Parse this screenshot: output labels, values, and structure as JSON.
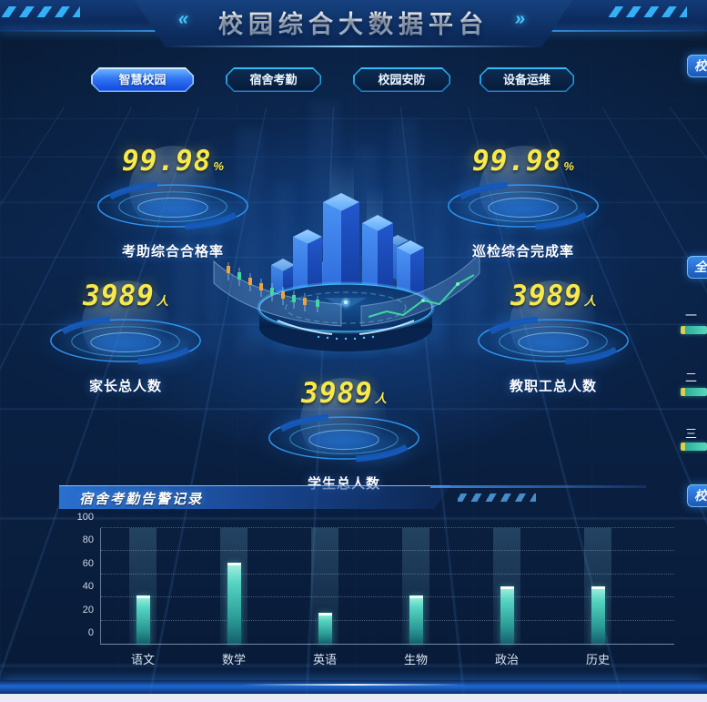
{
  "header": {
    "title": "校园综合大数据平台",
    "left_chevrons": "«",
    "right_chevrons": "»"
  },
  "tabs": [
    {
      "label": "智慧校园",
      "active": true
    },
    {
      "label": "宿舍考勤",
      "active": false
    },
    {
      "label": "校园安防",
      "active": false
    },
    {
      "label": "设备运维",
      "active": false
    }
  ],
  "stats": [
    {
      "value": "99.98",
      "unit": "%",
      "label": "考助综合合格率"
    },
    {
      "value": "99.98",
      "unit": "%",
      "label": "巡检综合完成率"
    },
    {
      "value": "3989",
      "unit": "人",
      "label": "家长总人数"
    },
    {
      "value": "3989",
      "unit": "人",
      "label": "教职工总人数"
    },
    {
      "value": "3989",
      "unit": "人",
      "label": "学生总人数"
    }
  ],
  "panel": {
    "title": "宿舍考勤告警记录"
  },
  "chart_data": {
    "type": "bar",
    "title": "宿舍考勤告警记录",
    "categories": [
      "语文",
      "数学",
      "英语",
      "生物",
      "政治",
      "历史"
    ],
    "values": [
      42,
      70,
      27,
      42,
      50,
      50
    ],
    "xlabel": "",
    "ylabel": "",
    "ylim": [
      0,
      100
    ],
    "yticks": [
      0,
      20,
      40,
      60,
      80,
      100
    ],
    "grid": "horizontal-dotted",
    "legend": "none",
    "bar_color": "#4fd6c4"
  },
  "right_rail": {
    "top_panel_partial": "校",
    "mid_panel_partial": "全",
    "bottom_panel_partial": "校",
    "ranks": [
      {
        "numeral": "一"
      },
      {
        "numeral": "二"
      },
      {
        "numeral": "三"
      }
    ]
  },
  "colors": {
    "accent_cyan": "#3fc1ff",
    "accent_yellow": "#f8e94b",
    "bar_teal": "#4fd6c4",
    "tab_active": "#2f74f2",
    "background": "#0a2246"
  }
}
